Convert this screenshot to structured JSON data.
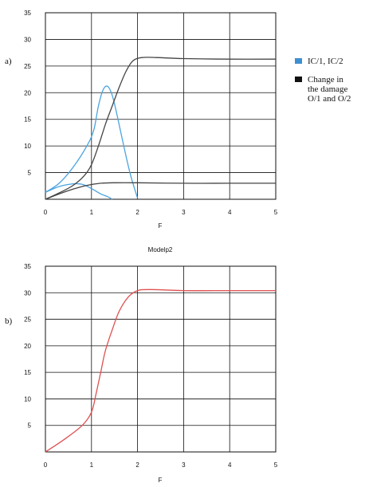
{
  "panels": [
    {
      "label": "a)",
      "title": "",
      "xlabel": "F",
      "legend": [
        {
          "color": "#3d8fd0",
          "text": "IC/1, IC/2"
        },
        {
          "color": "#111111",
          "text": "Change in the damage O/1 and O/2"
        }
      ]
    },
    {
      "label": "b)",
      "title": "Modelp2",
      "xlabel": "F",
      "legend": []
    }
  ],
  "chart_data": [
    {
      "type": "line",
      "title": "",
      "xlabel": "F",
      "ylabel": "",
      "xlim": [
        0,
        5
      ],
      "ylim": [
        0,
        35
      ],
      "xticks": [
        0,
        1,
        2,
        3,
        4,
        5
      ],
      "yticks": [
        5,
        10,
        15,
        20,
        25,
        30,
        35
      ],
      "grid": true,
      "legend_position": "right",
      "series": [
        {
          "name": "IC/1, IC/2",
          "color": "#4aa3e0",
          "points": [
            [
              0,
              1.3
            ],
            [
              0.3,
              3
            ],
            [
              0.6,
              6
            ],
            [
              0.9,
              10
            ],
            [
              1.05,
              13
            ],
            [
              1.15,
              17.5
            ],
            [
              1.25,
              20.5
            ],
            [
              1.35,
              21.2
            ],
            [
              1.45,
              19.5
            ],
            [
              1.55,
              16
            ],
            [
              1.7,
              10
            ],
            [
              1.85,
              4.5
            ],
            [
              2.0,
              0.2
            ]
          ]
        },
        {
          "name": "IC/1, IC/2",
          "color": "#4aa3e0",
          "points": [
            [
              0,
              1.3
            ],
            [
              0.3,
              2.4
            ],
            [
              0.6,
              2.9
            ],
            [
              0.8,
              2.8
            ],
            [
              1.0,
              2.0
            ],
            [
              1.2,
              1.0
            ],
            [
              1.35,
              0.5
            ],
            [
              1.45,
              0
            ]
          ]
        },
        {
          "name": "Change in the damage O/1 and O/2",
          "color": "#444444",
          "points": [
            [
              0,
              0
            ],
            [
              0.3,
              1.2
            ],
            [
              0.6,
              2.6
            ],
            [
              0.85,
              4.5
            ],
            [
              1.0,
              6.5
            ],
            [
              1.15,
              10
            ],
            [
              1.3,
              14
            ],
            [
              1.45,
              17.5
            ],
            [
              1.6,
              21
            ],
            [
              1.75,
              24
            ],
            [
              1.9,
              26
            ],
            [
              2.1,
              26.6
            ],
            [
              2.4,
              26.6
            ],
            [
              3,
              26.4
            ],
            [
              4,
              26.3
            ],
            [
              5,
              26.3
            ]
          ]
        },
        {
          "name": "Change in the damage O/1 and O/2",
          "color": "#444444",
          "points": [
            [
              0,
              0
            ],
            [
              0.3,
              1
            ],
            [
              0.6,
              1.9
            ],
            [
              0.9,
              2.6
            ],
            [
              1.2,
              3
            ],
            [
              1.5,
              3.1
            ],
            [
              2,
              3.1
            ],
            [
              3,
              3
            ],
            [
              4,
              3
            ],
            [
              5,
              3
            ]
          ]
        }
      ]
    },
    {
      "type": "line",
      "title": "Modelp2",
      "xlabel": "F",
      "ylabel": "",
      "xlim": [
        0,
        5
      ],
      "ylim": [
        0,
        35
      ],
      "xticks": [
        0,
        1,
        2,
        3,
        4,
        5
      ],
      "yticks": [
        5,
        10,
        15,
        20,
        25,
        30,
        35
      ],
      "grid": true,
      "series": [
        {
          "name": "",
          "color": "#e05050",
          "points": [
            [
              0,
              0
            ],
            [
              0.4,
              2.3
            ],
            [
              0.8,
              5
            ],
            [
              1.0,
              7.5
            ],
            [
              1.1,
              11
            ],
            [
              1.2,
              15
            ],
            [
              1.3,
              19
            ],
            [
              1.45,
              23
            ],
            [
              1.6,
              26.5
            ],
            [
              1.8,
              29.2
            ],
            [
              2.0,
              30.4
            ],
            [
              2.3,
              30.6
            ],
            [
              3,
              30.4
            ],
            [
              4,
              30.4
            ],
            [
              5,
              30.4
            ]
          ]
        }
      ]
    }
  ]
}
